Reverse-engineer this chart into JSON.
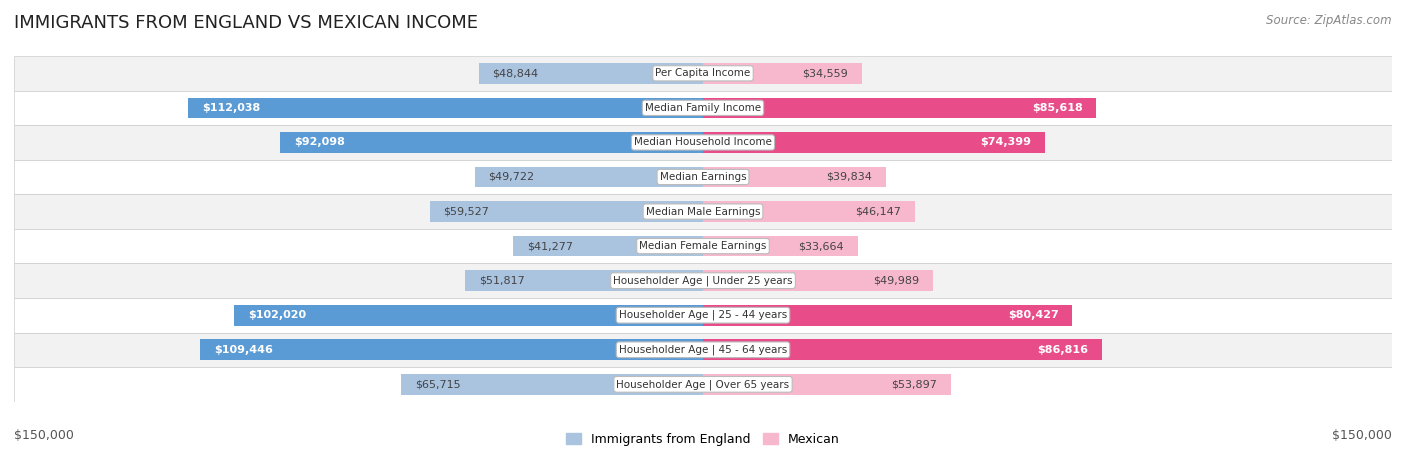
{
  "title": "IMMIGRANTS FROM ENGLAND VS MEXICAN INCOME",
  "source": "Source: ZipAtlas.com",
  "categories": [
    "Per Capita Income",
    "Median Family Income",
    "Median Household Income",
    "Median Earnings",
    "Median Male Earnings",
    "Median Female Earnings",
    "Householder Age | Under 25 years",
    "Householder Age | 25 - 44 years",
    "Householder Age | 45 - 64 years",
    "Householder Age | Over 65 years"
  ],
  "england_values": [
    48844,
    112038,
    92098,
    49722,
    59527,
    41277,
    51817,
    102020,
    109446,
    65715
  ],
  "mexican_values": [
    34559,
    85618,
    74399,
    39834,
    46147,
    33664,
    49989,
    80427,
    86816,
    53897
  ],
  "england_color_light": "#aac4e0",
  "england_color_dark": "#5b9bd5",
  "mexican_color_light": "#f7b8ce",
  "mexican_color_dark": "#e84d8a",
  "max_value": 150000,
  "bg_color": "#ffffff",
  "row_bg_light": "#f2f2f2",
  "row_bg_dark": "#e8e8e8",
  "bar_height": 0.6,
  "legend_england": "Immigrants from England",
  "legend_mexican": "Mexican",
  "xlabel_left": "$150,000",
  "xlabel_right": "$150,000",
  "england_label_texts": [
    "$48,844",
    "$112,038",
    "$92,098",
    "$49,722",
    "$59,527",
    "$41,277",
    "$51,817",
    "$102,020",
    "$109,446",
    "$65,715"
  ],
  "mexican_label_texts": [
    "$34,559",
    "$85,618",
    "$74,399",
    "$39,834",
    "$46,147",
    "$33,664",
    "$49,989",
    "$80,427",
    "$86,816",
    "$53,897"
  ],
  "inside_threshold": 70000
}
